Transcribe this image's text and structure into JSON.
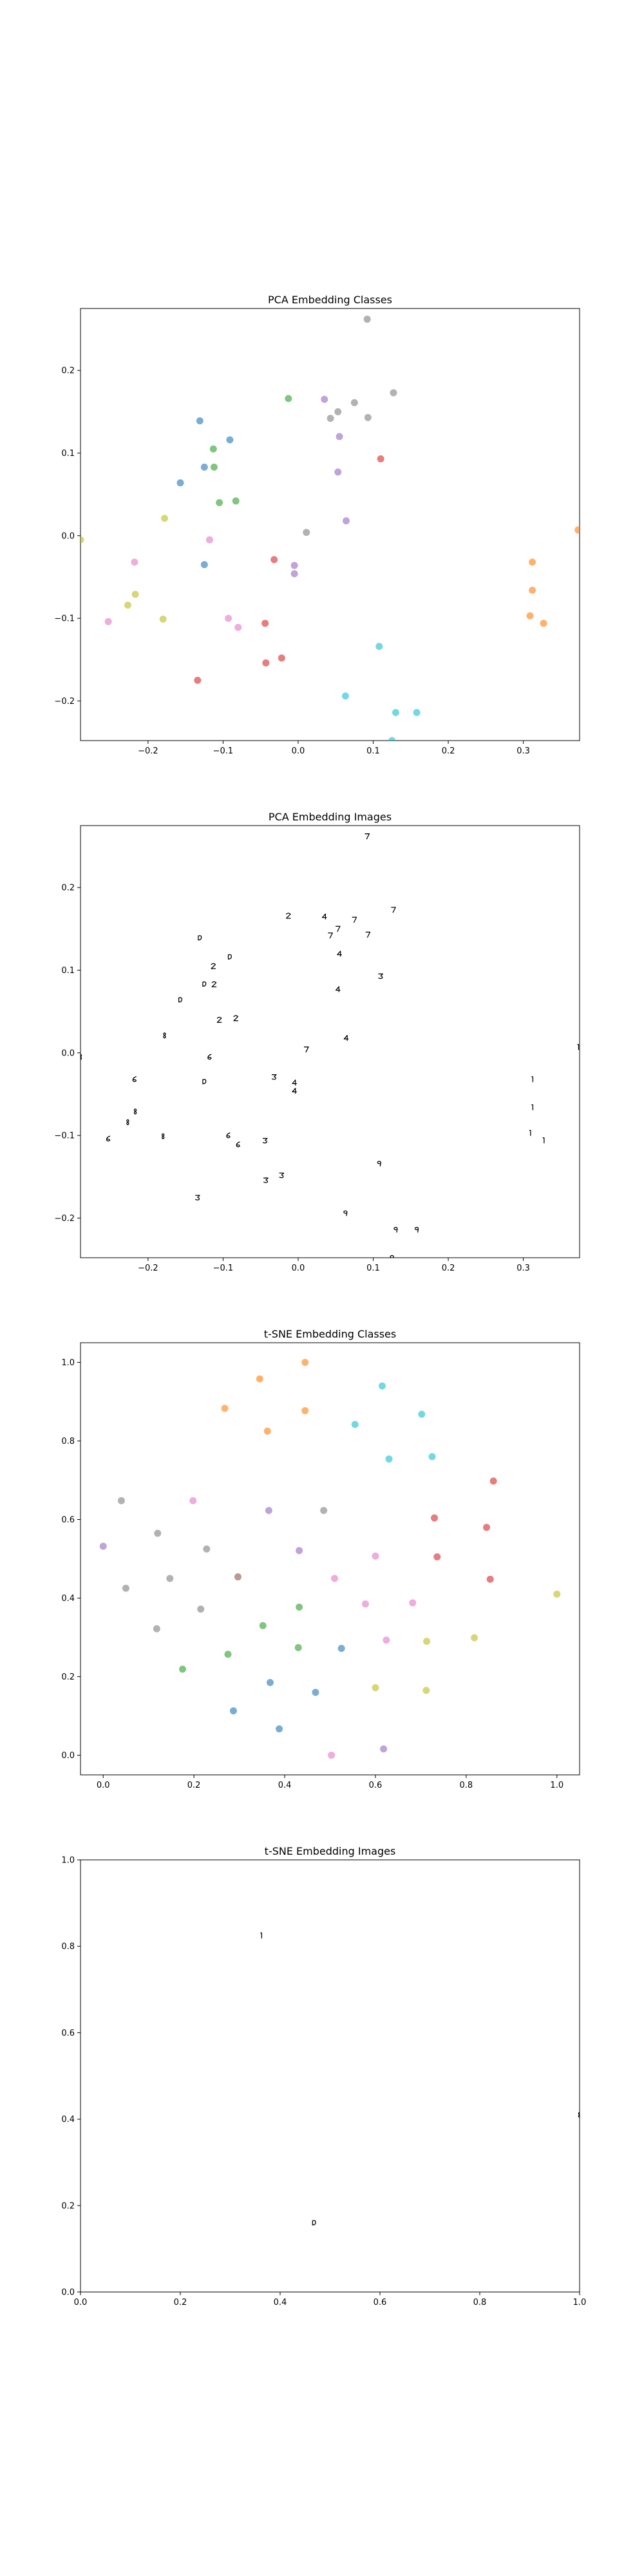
{
  "colors": {
    "classes": [
      "#1f77b4",
      "#ff7f0e",
      "#2ca02c",
      "#d62728",
      "#9467bd",
      "#8c564b",
      "#e377c2",
      "#7f7f7f",
      "#bcbd22",
      "#17becf"
    ],
    "glyph": "#000000",
    "axes": "#000000"
  },
  "chart_data": [
    {
      "type": "scatter",
      "title": "PCA Embedding Classes",
      "xlabel": "",
      "ylabel": "",
      "xlim": [
        -0.29,
        0.375
      ],
      "ylim": [
        -0.248,
        0.275
      ],
      "xticks": [
        -0.2,
        -0.1,
        0.0,
        0.1,
        0.2,
        0.3
      ],
      "yticks": [
        -0.2,
        -0.1,
        0.0,
        0.1,
        0.2
      ],
      "xtick_labels": [
        "−0.2",
        "−0.1",
        "0.0",
        "0.1",
        "0.2",
        "0.3"
      ],
      "ytick_labels": [
        "−0.2",
        "−0.1",
        "0.0",
        "0.1",
        "0.2"
      ],
      "grid": false,
      "points": [
        {
          "x": 0.092,
          "y": 0.262,
          "c": 7
        },
        {
          "x": 0.127,
          "y": 0.173,
          "c": 7
        },
        {
          "x": 0.035,
          "y": 0.165,
          "c": 4
        },
        {
          "x": 0.075,
          "y": 0.161,
          "c": 7
        },
        {
          "x": -0.013,
          "y": 0.166,
          "c": 2
        },
        {
          "x": 0.053,
          "y": 0.15,
          "c": 7
        },
        {
          "x": 0.093,
          "y": 0.143,
          "c": 7
        },
        {
          "x": 0.043,
          "y": 0.142,
          "c": 7
        },
        {
          "x": -0.131,
          "y": 0.139,
          "c": 0
        },
        {
          "x": -0.091,
          "y": 0.116,
          "c": 0
        },
        {
          "x": 0.055,
          "y": 0.12,
          "c": 4
        },
        {
          "x": -0.113,
          "y": 0.105,
          "c": 2
        },
        {
          "x": 0.11,
          "y": 0.093,
          "c": 3
        },
        {
          "x": -0.125,
          "y": 0.083,
          "c": 0
        },
        {
          "x": -0.112,
          "y": 0.083,
          "c": 2
        },
        {
          "x": 0.053,
          "y": 0.077,
          "c": 4
        },
        {
          "x": -0.157,
          "y": 0.064,
          "c": 0
        },
        {
          "x": -0.105,
          "y": 0.04,
          "c": 2
        },
        {
          "x": -0.083,
          "y": 0.042,
          "c": 2
        },
        {
          "x": -0.178,
          "y": 0.021,
          "c": 8
        },
        {
          "x": 0.064,
          "y": 0.018,
          "c": 4
        },
        {
          "x": 0.011,
          "y": 0.004,
          "c": 7
        },
        {
          "x": -0.118,
          "y": -0.005,
          "c": 6
        },
        {
          "x": 0.373,
          "y": 0.007,
          "c": 1
        },
        {
          "x": -0.29,
          "y": -0.005,
          "c": 8
        },
        {
          "x": -0.032,
          "y": -0.029,
          "c": 3
        },
        {
          "x": -0.125,
          "y": -0.035,
          "c": 0
        },
        {
          "x": -0.218,
          "y": -0.032,
          "c": 6
        },
        {
          "x": -0.005,
          "y": -0.036,
          "c": 4
        },
        {
          "x": -0.005,
          "y": -0.046,
          "c": 4
        },
        {
          "x": 0.312,
          "y": -0.032,
          "c": 1
        },
        {
          "x": 0.312,
          "y": -0.066,
          "c": 1
        },
        {
          "x": -0.217,
          "y": -0.071,
          "c": 8
        },
        {
          "x": -0.227,
          "y": -0.084,
          "c": 8
        },
        {
          "x": -0.253,
          "y": -0.104,
          "c": 6
        },
        {
          "x": -0.18,
          "y": -0.101,
          "c": 8
        },
        {
          "x": -0.093,
          "y": -0.1,
          "c": 6
        },
        {
          "x": -0.08,
          "y": -0.111,
          "c": 6
        },
        {
          "x": -0.044,
          "y": -0.106,
          "c": 3
        },
        {
          "x": 0.309,
          "y": -0.097,
          "c": 1
        },
        {
          "x": 0.327,
          "y": -0.106,
          "c": 1
        },
        {
          "x": 0.108,
          "y": -0.134,
          "c": 9
        },
        {
          "x": -0.134,
          "y": -0.175,
          "c": 3
        },
        {
          "x": -0.043,
          "y": -0.154,
          "c": 3
        },
        {
          "x": -0.022,
          "y": -0.148,
          "c": 3
        },
        {
          "x": 0.063,
          "y": -0.194,
          "c": 9
        },
        {
          "x": 0.13,
          "y": -0.214,
          "c": 9
        },
        {
          "x": 0.158,
          "y": -0.214,
          "c": 9
        },
        {
          "x": 0.125,
          "y": -0.248,
          "c": 9
        }
      ]
    },
    {
      "type": "scatter",
      "title": "PCA Embedding Images",
      "xlabel": "",
      "ylabel": "",
      "xlim": [
        -0.29,
        0.375
      ],
      "ylim": [
        -0.248,
        0.275
      ],
      "xticks": [
        -0.2,
        -0.1,
        0.0,
        0.1,
        0.2,
        0.3
      ],
      "yticks": [
        -0.2,
        -0.1,
        0.0,
        0.1,
        0.2
      ],
      "xtick_labels": [
        "−0.2",
        "−0.1",
        "0.0",
        "0.1",
        "0.2",
        "0.3"
      ],
      "ytick_labels": [
        "−0.2",
        "−0.1",
        "0.0",
        "0.1",
        "0.2"
      ],
      "grid": false,
      "markers": "image",
      "same_points_as": 0
    },
    {
      "type": "scatter",
      "title": "t-SNE Embedding Classes",
      "xlabel": "",
      "ylabel": "",
      "xlim": [
        -0.05,
        1.05
      ],
      "ylim": [
        -0.05,
        1.05
      ],
      "xticks": [
        0.0,
        0.2,
        0.4,
        0.6,
        0.8,
        1.0
      ],
      "yticks": [
        0.0,
        0.2,
        0.4,
        0.6,
        0.8,
        1.0
      ],
      "xtick_labels": [
        "0.0",
        "0.2",
        "0.4",
        "0.6",
        "0.8",
        "1.0"
      ],
      "ytick_labels": [
        "0.0",
        "0.2",
        "0.4",
        "0.6",
        "0.8",
        "1.0"
      ],
      "grid": false,
      "points": [
        {
          "x": 0.445,
          "y": 1.0,
          "c": 1
        },
        {
          "x": 0.345,
          "y": 0.958,
          "c": 1
        },
        {
          "x": 0.615,
          "y": 0.94,
          "c": 9
        },
        {
          "x": 0.268,
          "y": 0.883,
          "c": 1
        },
        {
          "x": 0.445,
          "y": 0.877,
          "c": 1
        },
        {
          "x": 0.702,
          "y": 0.868,
          "c": 9
        },
        {
          "x": 0.555,
          "y": 0.842,
          "c": 9
        },
        {
          "x": 0.362,
          "y": 0.825,
          "c": 1
        },
        {
          "x": 0.725,
          "y": 0.76,
          "c": 9
        },
        {
          "x": 0.63,
          "y": 0.754,
          "c": 9
        },
        {
          "x": 0.86,
          "y": 0.698,
          "c": 3
        },
        {
          "x": 0.04,
          "y": 0.648,
          "c": 7
        },
        {
          "x": 0.198,
          "y": 0.648,
          "c": 6
        },
        {
          "x": 0.365,
          "y": 0.623,
          "c": 4
        },
        {
          "x": 0.486,
          "y": 0.623,
          "c": 7
        },
        {
          "x": 0.73,
          "y": 0.604,
          "c": 3
        },
        {
          "x": 0.845,
          "y": 0.58,
          "c": 3
        },
        {
          "x": 0.12,
          "y": 0.565,
          "c": 7
        },
        {
          "x": 0.0,
          "y": 0.532,
          "c": 4
        },
        {
          "x": 0.228,
          "y": 0.525,
          "c": 7
        },
        {
          "x": 0.432,
          "y": 0.521,
          "c": 4
        },
        {
          "x": 0.6,
          "y": 0.507,
          "c": 6
        },
        {
          "x": 0.736,
          "y": 0.505,
          "c": 3
        },
        {
          "x": 0.147,
          "y": 0.45,
          "c": 7
        },
        {
          "x": 0.297,
          "y": 0.454,
          "c": 5
        },
        {
          "x": 0.51,
          "y": 0.45,
          "c": 6
        },
        {
          "x": 0.853,
          "y": 0.448,
          "c": 3
        },
        {
          "x": 0.05,
          "y": 0.425,
          "c": 7
        },
        {
          "x": 1.0,
          "y": 0.41,
          "c": 8
        },
        {
          "x": 0.578,
          "y": 0.385,
          "c": 6
        },
        {
          "x": 0.682,
          "y": 0.388,
          "c": 6
        },
        {
          "x": 0.432,
          "y": 0.377,
          "c": 2
        },
        {
          "x": 0.215,
          "y": 0.372,
          "c": 7
        },
        {
          "x": 0.352,
          "y": 0.33,
          "c": 2
        },
        {
          "x": 0.118,
          "y": 0.322,
          "c": 7
        },
        {
          "x": 0.624,
          "y": 0.293,
          "c": 6
        },
        {
          "x": 0.713,
          "y": 0.29,
          "c": 8
        },
        {
          "x": 0.818,
          "y": 0.299,
          "c": 8
        },
        {
          "x": 0.43,
          "y": 0.274,
          "c": 2
        },
        {
          "x": 0.525,
          "y": 0.272,
          "c": 0
        },
        {
          "x": 0.275,
          "y": 0.257,
          "c": 2
        },
        {
          "x": 0.175,
          "y": 0.219,
          "c": 2
        },
        {
          "x": 0.368,
          "y": 0.185,
          "c": 0
        },
        {
          "x": 0.6,
          "y": 0.172,
          "c": 8
        },
        {
          "x": 0.712,
          "y": 0.165,
          "c": 8
        },
        {
          "x": 0.468,
          "y": 0.16,
          "c": 0
        },
        {
          "x": 0.287,
          "y": 0.113,
          "c": 0
        },
        {
          "x": 0.388,
          "y": 0.067,
          "c": 0
        },
        {
          "x": 0.618,
          "y": 0.016,
          "c": 4
        },
        {
          "x": 0.503,
          "y": 0.0,
          "c": 6
        }
      ]
    },
    {
      "type": "scatter",
      "title": "t-SNE Embedding Images",
      "xlabel": "",
      "ylabel": "",
      "xlim": [
        0.0,
        1.0
      ],
      "ylim": [
        0.0,
        1.0
      ],
      "xticks": [
        0.0,
        0.2,
        0.4,
        0.6,
        0.8,
        1.0
      ],
      "yticks": [
        0.0,
        0.2,
        0.4,
        0.6,
        0.8,
        1.0
      ],
      "xtick_labels": [
        "0.0",
        "0.2",
        "0.4",
        "0.6",
        "0.8",
        "1.0"
      ],
      "ytick_labels": [
        "0.0",
        "0.2",
        "0.4",
        "0.6",
        "0.8",
        "1.0"
      ],
      "grid": false,
      "markers": "image",
      "points": [
        {
          "x": 0.362,
          "y": 0.825,
          "c": 1
        },
        {
          "x": 1.0,
          "y": 0.41,
          "c": 8
        },
        {
          "x": 0.468,
          "y": 0.16,
          "c": 0
        }
      ]
    }
  ]
}
